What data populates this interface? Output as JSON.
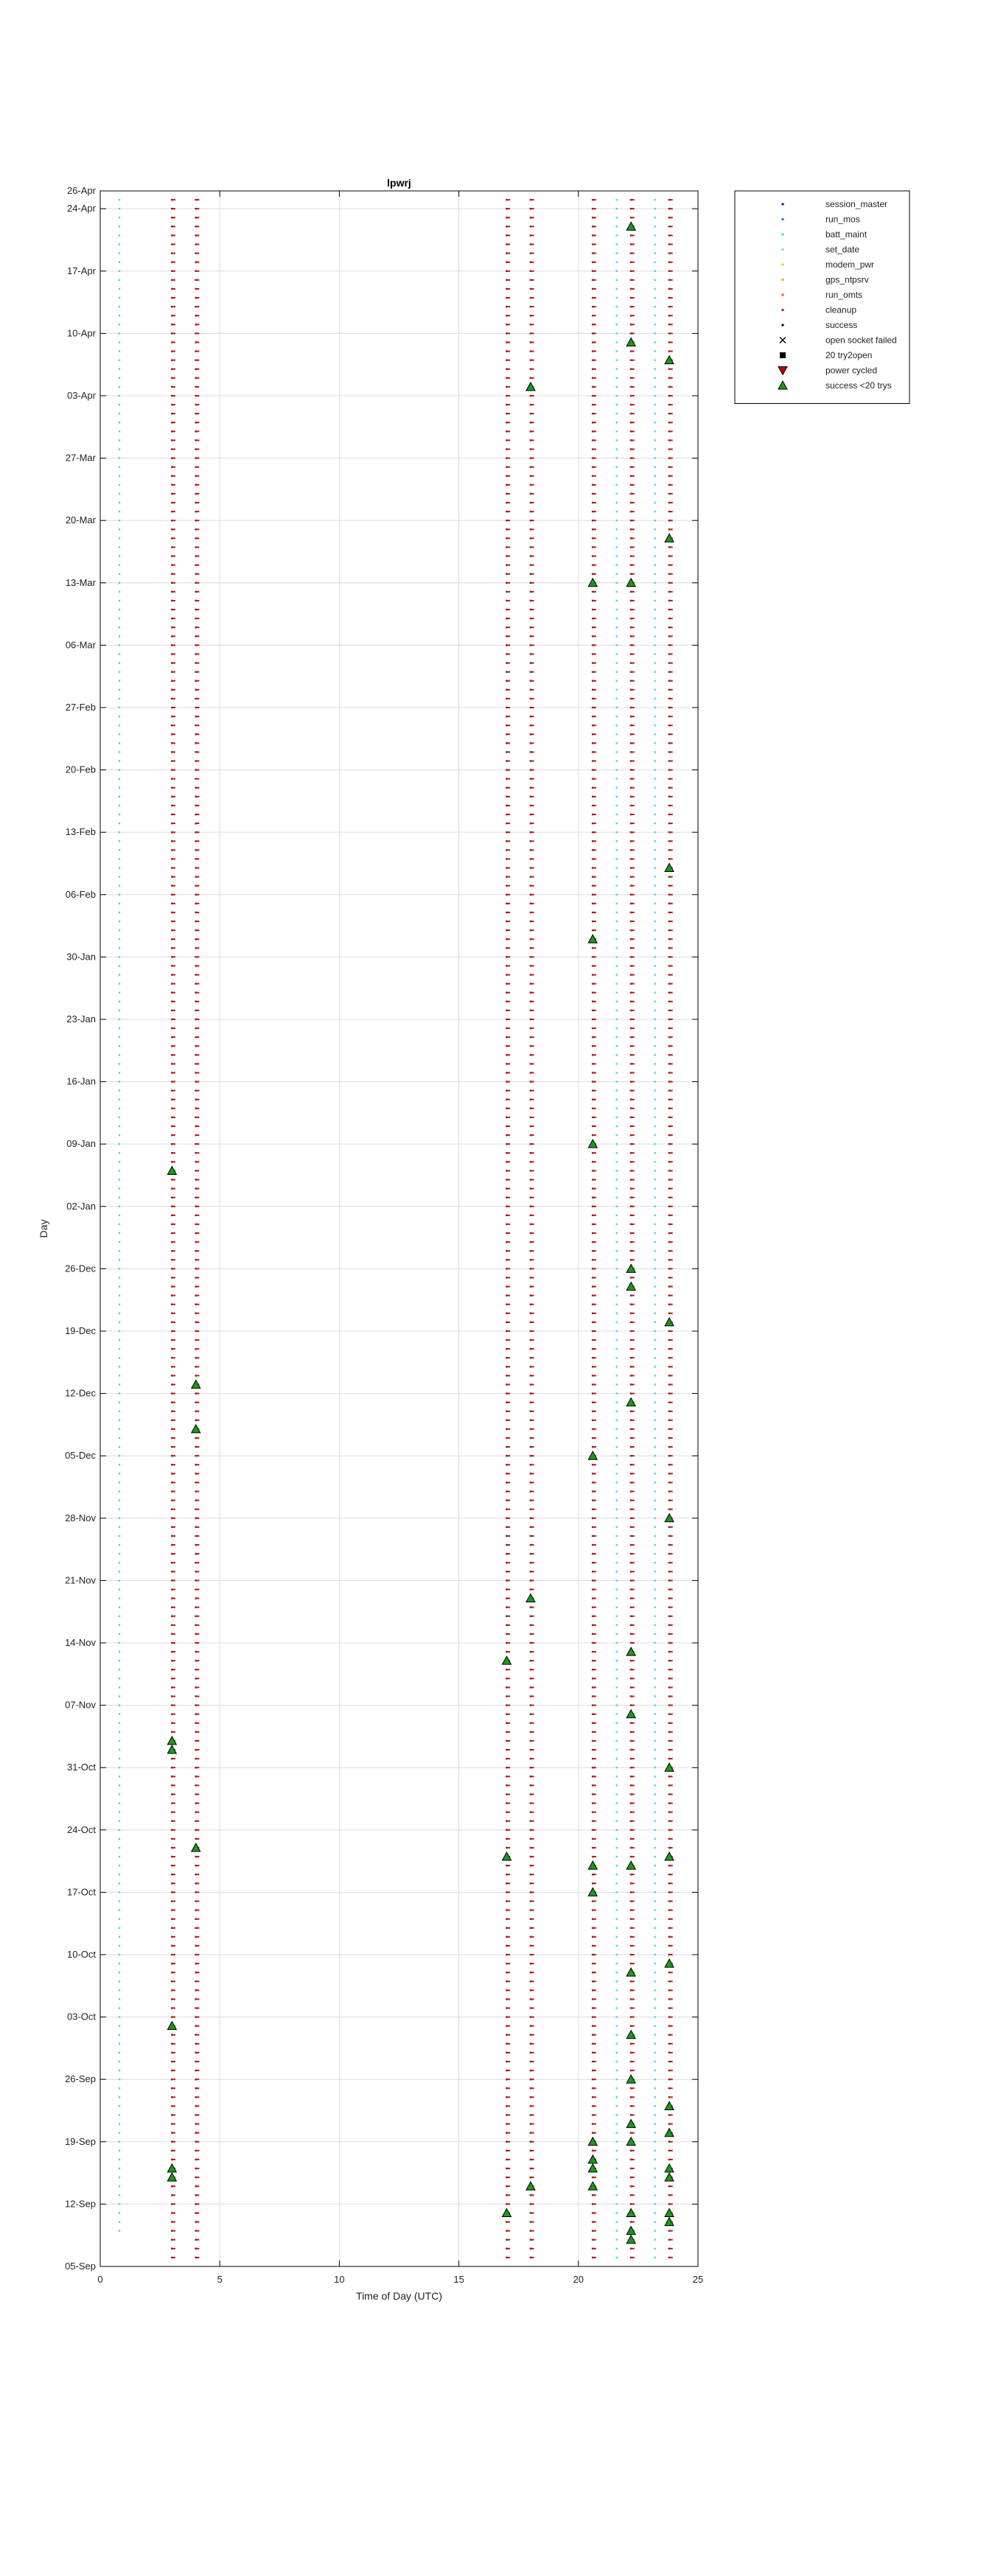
{
  "chart_data": {
    "type": "scatter",
    "title": "lpwrj",
    "xlabel": "Time of Day (UTC)",
    "ylabel": "Day",
    "xlim": [
      0,
      25
    ],
    "x_ticks": [
      0,
      5,
      10,
      15,
      20,
      25
    ],
    "x_tick_labels": [
      "0",
      "5",
      "10",
      "15",
      "20",
      "25"
    ],
    "y_ticks": [
      "2018-09-05",
      "2018-09-12",
      "2018-09-19",
      "2018-09-26",
      "2018-10-03",
      "2018-10-10",
      "2018-10-17",
      "2018-10-24",
      "2018-10-31",
      "2018-11-07",
      "2018-11-14",
      "2018-11-21",
      "2018-11-28",
      "2018-12-05",
      "2018-12-12",
      "2018-12-19",
      "2018-12-26",
      "2019-01-02",
      "2019-01-09",
      "2019-01-16",
      "2019-01-23",
      "2019-01-30",
      "2019-02-06",
      "2019-02-13",
      "2019-02-20",
      "2019-02-27",
      "2019-03-06",
      "2019-03-13",
      "2019-03-20",
      "2019-03-27",
      "2019-04-03",
      "2019-04-10",
      "2019-04-17",
      "2019-04-24",
      "2019-04-26"
    ],
    "y_tick_labels": [
      "05-Sep",
      "12-Sep",
      "19-Sep",
      "26-Sep",
      "03-Oct",
      "10-Oct",
      "17-Oct",
      "24-Oct",
      "31-Oct",
      "07-Nov",
      "14-Nov",
      "21-Nov",
      "28-Nov",
      "05-Dec",
      "12-Dec",
      "19-Dec",
      "26-Dec",
      "02-Jan",
      "09-Jan",
      "16-Jan",
      "23-Jan",
      "30-Jan",
      "06-Feb",
      "13-Feb",
      "20-Feb",
      "27-Feb",
      "06-Mar",
      "13-Mar",
      "20-Mar",
      "27-Mar",
      "03-Apr",
      "10-Apr",
      "17-Apr",
      "24-Apr",
      "26-Apr"
    ],
    "ylim": [
      "2018-09-05",
      "2019-04-26"
    ],
    "grid": true,
    "legend_position": "outside-top-right",
    "series": [
      {
        "name": "session_master",
        "marker": "dot",
        "color": "#1a1a8c",
        "runs": [
          {
            "x": 3.0,
            "from": "2018-09-06",
            "to": "2019-04-25"
          },
          {
            "x": 4.0,
            "from": "2018-09-06",
            "to": "2019-04-25"
          },
          {
            "x": 17.0,
            "from": "2018-09-06",
            "to": "2019-04-25"
          },
          {
            "x": 18.0,
            "from": "2018-09-06",
            "to": "2019-04-25"
          },
          {
            "x": 20.6,
            "from": "2018-09-06",
            "to": "2019-04-25"
          },
          {
            "x": 22.2,
            "from": "2018-09-06",
            "to": "2019-04-25"
          },
          {
            "x": 23.8,
            "from": "2018-09-06",
            "to": "2019-04-25"
          }
        ]
      },
      {
        "name": "run_mos",
        "marker": "dot",
        "color": "#1e78d2",
        "runs": []
      },
      {
        "name": "batt_maint",
        "marker": "dot",
        "color": "#3cd7e6",
        "runs": [
          {
            "x": 0.8,
            "from": "2018-09-09",
            "to": "2019-04-25"
          },
          {
            "x": 21.6,
            "from": "2018-09-06",
            "to": "2019-04-25"
          },
          {
            "x": 23.2,
            "from": "2018-09-06",
            "to": "2019-04-25"
          }
        ]
      },
      {
        "name": "set_date",
        "marker": "dot",
        "color": "#78e6b4",
        "runs": []
      },
      {
        "name": "modem_pwr",
        "marker": "dot",
        "color": "#d2d228",
        "runs": []
      },
      {
        "name": "gps_ntpsrv",
        "marker": "dot",
        "color": "#f0a028",
        "runs": []
      },
      {
        "name": "run_omts",
        "marker": "dot",
        "color": "#e65a1e",
        "runs": []
      },
      {
        "name": "cleanup",
        "marker": "dot",
        "color": "#b41e14",
        "runs": [
          {
            "x": 3.05,
            "from": "2018-09-06",
            "to": "2019-04-25"
          },
          {
            "x": 4.05,
            "from": "2018-09-06",
            "to": "2019-04-25"
          },
          {
            "x": 17.05,
            "from": "2018-09-06",
            "to": "2019-04-25"
          },
          {
            "x": 18.05,
            "from": "2018-09-06",
            "to": "2019-04-25"
          },
          {
            "x": 20.65,
            "from": "2018-09-06",
            "to": "2019-04-25"
          },
          {
            "x": 22.25,
            "from": "2018-09-06",
            "to": "2019-04-25"
          },
          {
            "x": 23.85,
            "from": "2018-09-06",
            "to": "2019-04-25"
          }
        ]
      },
      {
        "name": "success",
        "marker": "dot",
        "color": "#000000",
        "runs": []
      },
      {
        "name": "open socket failed",
        "marker": "x",
        "color": "#000000",
        "points": []
      },
      {
        "name": "20 try2open",
        "marker": "square",
        "color": "#000000",
        "points": []
      },
      {
        "name": "power cycled",
        "marker": "triangle-down",
        "color": "#c00000",
        "points": []
      },
      {
        "name": "success <20 trys",
        "marker": "triangle-up",
        "color": "#1a9a1a",
        "points": [
          {
            "x": 3.0,
            "date": "2018-09-16"
          },
          {
            "x": 3.0,
            "date": "2018-09-15"
          },
          {
            "x": 3.0,
            "date": "2018-10-02"
          },
          {
            "x": 3.0,
            "date": "2018-11-02"
          },
          {
            "x": 3.0,
            "date": "2018-11-03"
          },
          {
            "x": 3.0,
            "date": "2019-01-06"
          },
          {
            "x": 4.0,
            "date": "2018-10-22"
          },
          {
            "x": 4.0,
            "date": "2018-12-08"
          },
          {
            "x": 4.0,
            "date": "2018-12-13"
          },
          {
            "x": 17.0,
            "date": "2018-09-11"
          },
          {
            "x": 17.0,
            "date": "2018-10-21"
          },
          {
            "x": 17.0,
            "date": "2018-11-12"
          },
          {
            "x": 18.0,
            "date": "2018-09-14"
          },
          {
            "x": 18.0,
            "date": "2018-11-19"
          },
          {
            "x": 18.0,
            "date": "2019-04-04"
          },
          {
            "x": 20.6,
            "date": "2018-09-14"
          },
          {
            "x": 20.6,
            "date": "2018-09-16"
          },
          {
            "x": 20.6,
            "date": "2018-09-17"
          },
          {
            "x": 20.6,
            "date": "2018-09-19"
          },
          {
            "x": 20.6,
            "date": "2018-10-17"
          },
          {
            "x": 20.6,
            "date": "2018-10-20"
          },
          {
            "x": 20.6,
            "date": "2018-12-05"
          },
          {
            "x": 20.6,
            "date": "2019-01-09"
          },
          {
            "x": 20.6,
            "date": "2019-02-01"
          },
          {
            "x": 20.6,
            "date": "2019-03-13"
          },
          {
            "x": 22.2,
            "date": "2018-09-08"
          },
          {
            "x": 22.2,
            "date": "2018-09-09"
          },
          {
            "x": 22.2,
            "date": "2018-09-11"
          },
          {
            "x": 22.2,
            "date": "2018-09-19"
          },
          {
            "x": 22.2,
            "date": "2018-09-21"
          },
          {
            "x": 22.2,
            "date": "2018-09-26"
          },
          {
            "x": 22.2,
            "date": "2018-10-01"
          },
          {
            "x": 22.2,
            "date": "2018-10-08"
          },
          {
            "x": 22.2,
            "date": "2018-10-20"
          },
          {
            "x": 22.2,
            "date": "2018-11-06"
          },
          {
            "x": 22.2,
            "date": "2018-11-13"
          },
          {
            "x": 22.2,
            "date": "2018-12-11"
          },
          {
            "x": 22.2,
            "date": "2018-12-24"
          },
          {
            "x": 22.2,
            "date": "2018-12-26"
          },
          {
            "x": 22.2,
            "date": "2019-03-13"
          },
          {
            "x": 22.2,
            "date": "2019-04-09"
          },
          {
            "x": 22.2,
            "date": "2019-04-22"
          },
          {
            "x": 23.8,
            "date": "2018-09-10"
          },
          {
            "x": 23.8,
            "date": "2018-09-11"
          },
          {
            "x": 23.8,
            "date": "2018-09-15"
          },
          {
            "x": 23.8,
            "date": "2018-09-16"
          },
          {
            "x": 23.8,
            "date": "2018-09-20"
          },
          {
            "x": 23.8,
            "date": "2018-09-23"
          },
          {
            "x": 23.8,
            "date": "2018-10-09"
          },
          {
            "x": 23.8,
            "date": "2018-10-21"
          },
          {
            "x": 23.8,
            "date": "2018-10-31"
          },
          {
            "x": 23.8,
            "date": "2018-11-28"
          },
          {
            "x": 23.8,
            "date": "2018-12-20"
          },
          {
            "x": 23.8,
            "date": "2019-02-09"
          },
          {
            "x": 23.8,
            "date": "2019-03-18"
          },
          {
            "x": 23.8,
            "date": "2019-04-07"
          }
        ]
      }
    ]
  }
}
